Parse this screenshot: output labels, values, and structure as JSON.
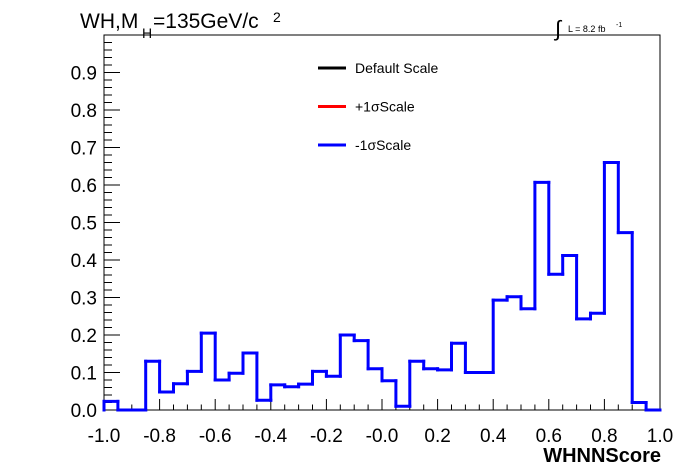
{
  "chart_data": {
    "type": "line",
    "title_main": "WH,M",
    "title_sub": "H",
    "title_rest": "=135GeV/c",
    "title_sup": "2",
    "lumi_integral": "∫",
    "lumi_text": "L = 8.2 fb",
    "lumi_sup": "-1",
    "xlabel": "WHNNScore",
    "ylabel": "",
    "xlim": [
      -1.0,
      1.0
    ],
    "ylim": [
      0.0,
      1.0
    ],
    "x_ticks": [
      "-1.0",
      "-0.8",
      "-0.6",
      "-0.4",
      "-0.2",
      "-0.0",
      "0.2",
      "0.4",
      "0.6",
      "0.8",
      "1.0"
    ],
    "y_ticks": [
      "0.0",
      "0.1",
      "0.2",
      "0.3",
      "0.4",
      "0.5",
      "0.6",
      "0.7",
      "0.8",
      "0.9"
    ],
    "bin_edges": [
      -1.0,
      -0.95,
      -0.9,
      -0.85,
      -0.8,
      -0.75,
      -0.7,
      -0.65,
      -0.6,
      -0.55,
      -0.5,
      -0.45,
      -0.4,
      -0.35,
      -0.3,
      -0.25,
      -0.2,
      -0.15,
      -0.1,
      -0.05,
      0.0,
      0.05,
      0.1,
      0.15,
      0.2,
      0.25,
      0.3,
      0.35,
      0.4,
      0.45,
      0.5,
      0.55,
      0.6,
      0.65,
      0.7,
      0.75,
      0.8,
      0.85,
      0.9,
      0.95,
      1.0
    ],
    "legend": {
      "placement": "top-center",
      "entries": [
        {
          "label": "Default Scale",
          "color": "#000000"
        },
        {
          "label": "+1σScale",
          "color": "#ff0000"
        },
        {
          "label": "-1σScale",
          "color": "#0000ff"
        }
      ]
    },
    "series": [
      {
        "name": "-1σScale",
        "color": "#0000ff",
        "values": [
          0.023,
          0.0,
          0.0,
          0.13,
          0.048,
          0.07,
          0.103,
          0.205,
          0.08,
          0.098,
          0.152,
          0.026,
          0.067,
          0.062,
          0.069,
          0.103,
          0.09,
          0.2,
          0.185,
          0.11,
          0.078,
          0.01,
          0.13,
          0.11,
          0.107,
          0.178,
          0.1,
          0.1,
          0.293,
          0.302,
          0.27,
          0.607,
          0.362,
          0.412,
          0.243,
          0.258,
          0.66,
          0.473,
          0.02,
          0.0
        ]
      }
    ]
  }
}
